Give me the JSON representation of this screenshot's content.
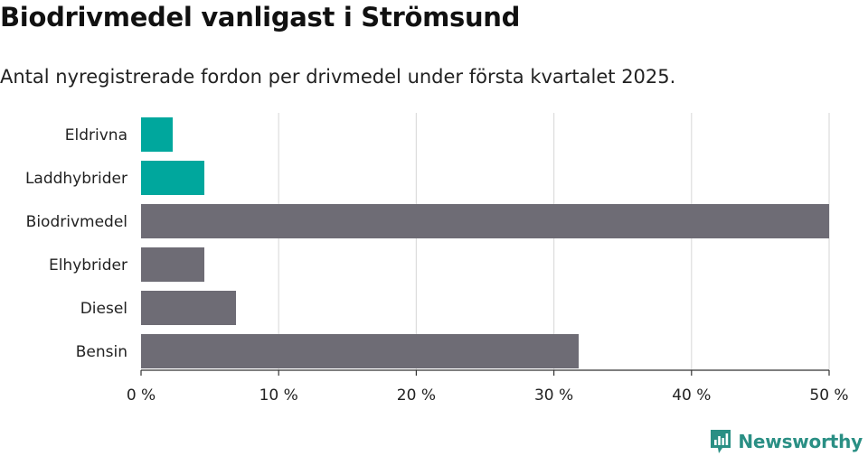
{
  "chart_data": {
    "type": "bar",
    "orientation": "horizontal",
    "title": "Biodrivmedel vanligast i Strömsund",
    "subtitle": "Antal nyregistrerade fordon per drivmedel under första kvartalet 2025.",
    "categories": [
      "Eldrivna",
      "Laddhybrider",
      "Biodrivmedel",
      "Elhybrider",
      "Diesel",
      "Bensin"
    ],
    "values": [
      2.3,
      4.6,
      50.0,
      4.6,
      6.9,
      31.8
    ],
    "colors": [
      "#00a79d",
      "#00a79d",
      "#6e6c75",
      "#6e6c75",
      "#6e6c75",
      "#6e6c75"
    ],
    "xlim": [
      0,
      50
    ],
    "xticks": [
      0,
      10,
      20,
      30,
      40,
      50
    ],
    "xtick_labels": [
      "0 %",
      "10 %",
      "20 %",
      "30 %",
      "40 %",
      "50 %"
    ],
    "xlabel": "",
    "ylabel": "",
    "grid": true,
    "legend": "none"
  },
  "brand": {
    "name": "Newsworthy",
    "logo_icon": "newsworthy-logo-icon",
    "color": "#2a8f84"
  }
}
